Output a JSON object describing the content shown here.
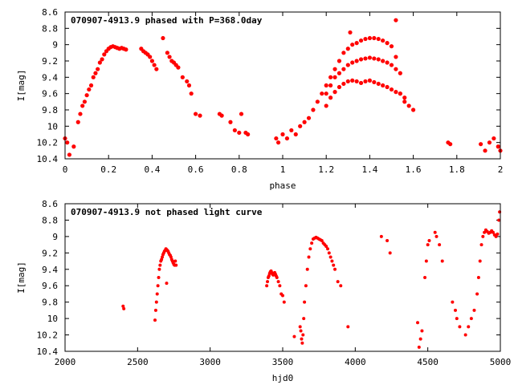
{
  "chart_data": [
    {
      "type": "scatter",
      "title": "070907-4913.9 phased with P=368.0day",
      "xlabel": "phase",
      "ylabel": "I[mag]",
      "xlim": [
        0,
        2
      ],
      "ylim": [
        10.4,
        8.6
      ],
      "y_inverted": true,
      "x_ticks": [
        "0",
        "0.2",
        "0.4",
        "0.6",
        "0.8",
        "1",
        "1.2",
        "1.4",
        "1.6",
        "1.8",
        "2"
      ],
      "y_ticks": [
        "8.6",
        "8.8",
        "9",
        "9.2",
        "9.4",
        "9.6",
        "9.8",
        "10",
        "10.2",
        "10.4"
      ],
      "marker_color": "#ff0000",
      "series": [
        {
          "x": [
            0.0,
            0.01,
            0.02,
            0.04,
            0.06,
            0.07,
            0.08,
            0.09,
            0.1,
            0.11,
            0.12,
            0.13,
            0.14,
            0.15,
            0.16,
            0.17,
            0.18,
            0.19,
            0.2,
            0.21,
            0.22,
            0.23,
            0.24,
            0.25,
            0.26,
            0.27,
            0.28,
            0.35,
            0.36,
            0.37,
            0.38,
            0.39,
            0.4,
            0.41,
            0.42,
            0.45,
            0.47,
            0.48,
            0.49,
            0.5,
            0.51,
            0.52,
            0.54,
            0.56,
            0.57,
            0.58,
            0.6,
            0.62,
            0.71,
            0.72,
            0.76,
            0.78,
            0.8,
            0.81,
            0.83,
            0.84,
            0.97,
            0.98,
            1.0,
            1.02,
            1.04,
            1.06,
            1.08,
            1.1,
            1.12,
            1.14,
            1.16,
            1.18,
            1.2,
            1.22,
            1.24,
            1.26,
            1.28,
            1.3,
            1.32,
            1.34,
            1.36,
            1.38,
            1.4,
            1.42,
            1.44,
            1.46,
            1.48,
            1.5,
            1.52,
            1.54,
            1.56,
            1.58,
            1.6,
            1.2,
            1.22,
            1.24,
            1.26,
            1.28,
            1.3,
            1.32,
            1.34,
            1.36,
            1.38,
            1.4,
            1.42,
            1.44,
            1.46,
            1.48,
            1.5,
            1.52,
            1.54,
            1.2,
            1.22,
            1.24,
            1.26,
            1.28,
            1.3,
            1.32,
            1.34,
            1.36,
            1.38,
            1.4,
            1.42,
            1.44,
            1.46,
            1.48,
            1.5,
            1.52,
            1.54,
            1.56,
            1.31,
            1.52,
            1.76,
            1.77,
            1.91,
            1.93,
            1.95,
            1.97,
            1.99,
            2.0
          ],
          "y": [
            10.15,
            10.2,
            10.35,
            10.25,
            9.95,
            9.85,
            9.75,
            9.7,
            9.62,
            9.55,
            9.5,
            9.4,
            9.35,
            9.3,
            9.22,
            9.18,
            9.12,
            9.08,
            9.05,
            9.03,
            9.02,
            9.03,
            9.04,
            9.05,
            9.04,
            9.05,
            9.06,
            9.05,
            9.08,
            9.1,
            9.12,
            9.15,
            9.2,
            9.25,
            9.3,
            8.92,
            9.1,
            9.15,
            9.2,
            9.22,
            9.25,
            9.28,
            9.4,
            9.45,
            9.5,
            9.6,
            9.85,
            9.87,
            9.85,
            9.87,
            9.95,
            10.05,
            10.08,
            9.85,
            10.08,
            10.1,
            10.15,
            10.2,
            10.1,
            10.15,
            10.05,
            10.1,
            10.0,
            9.95,
            9.9,
            9.8,
            9.7,
            9.6,
            9.5,
            9.4,
            9.3,
            9.2,
            9.1,
            9.05,
            9.0,
            8.98,
            8.95,
            8.93,
            8.92,
            8.92,
            8.93,
            8.95,
            8.98,
            9.02,
            9.15,
            9.6,
            9.7,
            9.75,
            9.8,
            9.6,
            9.5,
            9.4,
            9.35,
            9.3,
            9.25,
            9.22,
            9.2,
            9.18,
            9.17,
            9.16,
            9.17,
            9.18,
            9.2,
            9.22,
            9.25,
            9.3,
            9.35,
            9.75,
            9.65,
            9.58,
            9.52,
            9.48,
            9.45,
            9.44,
            9.45,
            9.47,
            9.45,
            9.44,
            9.46,
            9.48,
            9.5,
            9.52,
            9.55,
            9.58,
            9.6,
            9.65,
            8.85,
            8.7,
            10.2,
            10.22,
            10.22,
            10.3,
            10.2,
            10.15,
            10.25,
            10.3
          ]
        }
      ]
    },
    {
      "type": "scatter",
      "title": "070907-4913.9 not phased light curve",
      "xlabel": "hjd0",
      "ylabel": "I[mag]",
      "xlim": [
        2000,
        5000
      ],
      "ylim": [
        10.4,
        8.6
      ],
      "y_inverted": true,
      "x_ticks": [
        "2000",
        "2500",
        "3000",
        "3500",
        "4000",
        "4500",
        "5000"
      ],
      "y_ticks": [
        "8.6",
        "8.8",
        "9",
        "9.2",
        "9.4",
        "9.6",
        "9.8",
        "10",
        "10.2",
        "10.4"
      ],
      "marker_color": "#ff0000",
      "series": [
        {
          "x": [
            2400,
            2405,
            2620,
            2625,
            2630,
            2635,
            2640,
            2645,
            2650,
            2655,
            2660,
            2665,
            2670,
            2675,
            2680,
            2685,
            2690,
            2695,
            2700,
            2705,
            2710,
            2715,
            2720,
            2725,
            2730,
            2735,
            2740,
            2745,
            2750,
            2755,
            2760,
            2765,
            2700,
            3390,
            3395,
            3400,
            3405,
            3410,
            3415,
            3420,
            3425,
            3430,
            3435,
            3440,
            3445,
            3450,
            3455,
            3460,
            3470,
            3480,
            3490,
            3500,
            3510,
            3580,
            3620,
            3625,
            3630,
            3635,
            3640,
            3645,
            3650,
            3660,
            3670,
            3680,
            3690,
            3700,
            3710,
            3720,
            3730,
            3740,
            3750,
            3760,
            3770,
            3780,
            3790,
            3800,
            3810,
            3820,
            3830,
            3840,
            3850,
            3860,
            3880,
            3900,
            3950,
            4180,
            4220,
            4240,
            4430,
            4440,
            4450,
            4460,
            4480,
            4490,
            4500,
            4510,
            4550,
            4560,
            4580,
            4600,
            4670,
            4690,
            4700,
            4720,
            4760,
            4780,
            4800,
            4820,
            4840,
            4850,
            4860,
            4870,
            4880,
            4890,
            4900,
            4910,
            4920,
            4930,
            4940,
            4950,
            4960,
            4970,
            4980,
            4990,
            4995
          ],
          "y": [
            9.85,
            9.88,
            10.02,
            9.9,
            9.8,
            9.7,
            9.6,
            9.5,
            9.4,
            9.35,
            9.3,
            9.28,
            9.25,
            9.22,
            9.2,
            9.18,
            9.17,
            9.15,
            9.16,
            9.17,
            9.18,
            9.2,
            9.22,
            9.23,
            9.25,
            9.28,
            9.3,
            9.32,
            9.34,
            9.35,
            9.3,
            9.35,
            9.57,
            9.6,
            9.55,
            9.5,
            9.48,
            9.45,
            9.43,
            9.42,
            9.44,
            9.46,
            9.47,
            9.45,
            9.44,
            9.46,
            9.48,
            9.5,
            9.55,
            9.6,
            9.7,
            9.72,
            9.8,
            10.22,
            10.1,
            10.15,
            10.25,
            10.3,
            10.2,
            10.0,
            9.8,
            9.6,
            9.4,
            9.25,
            9.15,
            9.08,
            9.03,
            9.02,
            9.01,
            9.02,
            9.03,
            9.04,
            9.05,
            9.08,
            9.1,
            9.12,
            9.15,
            9.2,
            9.25,
            9.3,
            9.35,
            9.4,
            9.55,
            9.6,
            10.1,
            9.0,
            9.05,
            9.2,
            10.05,
            10.35,
            10.25,
            10.15,
            9.5,
            9.3,
            9.1,
            9.05,
            8.95,
            9.0,
            9.1,
            9.3,
            9.8,
            9.9,
            10.0,
            10.1,
            10.2,
            10.1,
            10.0,
            9.9,
            9.7,
            9.5,
            9.3,
            9.1,
            9.0,
            8.95,
            8.92,
            8.94,
            8.96,
            8.95,
            8.93,
            8.95,
            8.98,
            9.0,
            8.97,
            8.8,
            8.7
          ]
        }
      ]
    }
  ]
}
